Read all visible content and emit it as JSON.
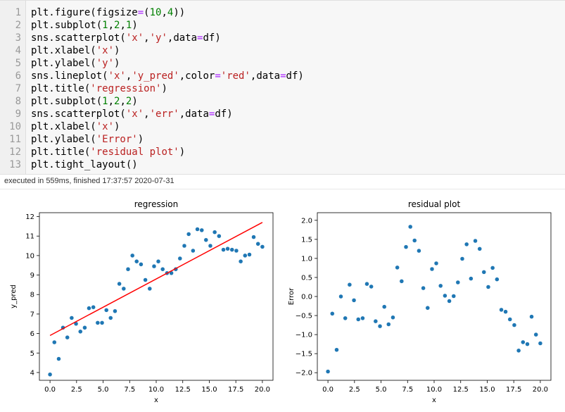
{
  "code_lines": [
    {
      "n": "1",
      "tokens": [
        {
          "t": "plt.figure(figsize",
          "c": ""
        },
        {
          "t": "=",
          "c": "k-op"
        },
        {
          "t": "(",
          "c": ""
        },
        {
          "t": "10",
          "c": "k-num"
        },
        {
          "t": ",",
          "c": ""
        },
        {
          "t": "4",
          "c": "k-num"
        },
        {
          "t": "))",
          "c": ""
        }
      ]
    },
    {
      "n": "2",
      "tokens": [
        {
          "t": "plt.subplot(",
          "c": ""
        },
        {
          "t": "1",
          "c": "k-num"
        },
        {
          "t": ",",
          "c": ""
        },
        {
          "t": "2",
          "c": "k-num"
        },
        {
          "t": ",",
          "c": ""
        },
        {
          "t": "1",
          "c": "k-num"
        },
        {
          "t": ")",
          "c": ""
        }
      ]
    },
    {
      "n": "3",
      "tokens": [
        {
          "t": "sns.scatterplot(",
          "c": ""
        },
        {
          "t": "'x'",
          "c": "k-str"
        },
        {
          "t": ",",
          "c": ""
        },
        {
          "t": "'y'",
          "c": "k-str"
        },
        {
          "t": ",data",
          "c": ""
        },
        {
          "t": "=",
          "c": "k-op"
        },
        {
          "t": "df)",
          "c": ""
        }
      ]
    },
    {
      "n": "4",
      "tokens": [
        {
          "t": "plt.xlabel(",
          "c": ""
        },
        {
          "t": "'x'",
          "c": "k-str"
        },
        {
          "t": ")",
          "c": ""
        }
      ]
    },
    {
      "n": "5",
      "tokens": [
        {
          "t": "plt.ylabel(",
          "c": ""
        },
        {
          "t": "'y'",
          "c": "k-str"
        },
        {
          "t": ")",
          "c": ""
        }
      ]
    },
    {
      "n": "6",
      "tokens": [
        {
          "t": "sns.lineplot(",
          "c": ""
        },
        {
          "t": "'x'",
          "c": "k-str"
        },
        {
          "t": ",",
          "c": ""
        },
        {
          "t": "'y_pred'",
          "c": "k-str"
        },
        {
          "t": ",color",
          "c": ""
        },
        {
          "t": "=",
          "c": "k-op"
        },
        {
          "t": "'red'",
          "c": "k-str"
        },
        {
          "t": ",data",
          "c": ""
        },
        {
          "t": "=",
          "c": "k-op"
        },
        {
          "t": "df)",
          "c": ""
        }
      ]
    },
    {
      "n": "7",
      "tokens": [
        {
          "t": "plt.title(",
          "c": ""
        },
        {
          "t": "'regression'",
          "c": "k-str"
        },
        {
          "t": ")",
          "c": ""
        }
      ]
    },
    {
      "n": "8",
      "tokens": [
        {
          "t": "plt.subplot(",
          "c": ""
        },
        {
          "t": "1",
          "c": "k-num"
        },
        {
          "t": ",",
          "c": ""
        },
        {
          "t": "2",
          "c": "k-num"
        },
        {
          "t": ",",
          "c": ""
        },
        {
          "t": "2",
          "c": "k-num"
        },
        {
          "t": ")",
          "c": ""
        }
      ]
    },
    {
      "n": "9",
      "tokens": [
        {
          "t": "sns.scatterplot(",
          "c": ""
        },
        {
          "t": "'x'",
          "c": "k-str"
        },
        {
          "t": ",",
          "c": ""
        },
        {
          "t": "'err'",
          "c": "k-str"
        },
        {
          "t": ",data",
          "c": ""
        },
        {
          "t": "=",
          "c": "k-op"
        },
        {
          "t": "df)",
          "c": ""
        }
      ]
    },
    {
      "n": "10",
      "tokens": [
        {
          "t": "plt.xlabel(",
          "c": ""
        },
        {
          "t": "'x'",
          "c": "k-str"
        },
        {
          "t": ")",
          "c": ""
        }
      ]
    },
    {
      "n": "11",
      "tokens": [
        {
          "t": "plt.ylabel(",
          "c": ""
        },
        {
          "t": "'Error'",
          "c": "k-str"
        },
        {
          "t": ")",
          "c": ""
        }
      ]
    },
    {
      "n": "12",
      "tokens": [
        {
          "t": "plt.title(",
          "c": ""
        },
        {
          "t": "'residual plot'",
          "c": "k-str"
        },
        {
          "t": ")",
          "c": ""
        }
      ]
    },
    {
      "n": "13",
      "tokens": [
        {
          "t": "plt.tight_layout()",
          "c": ""
        }
      ]
    }
  ],
  "execution_status": "executed in 559ms, finished 17:37:57 2020-07-31",
  "colors": {
    "point": "#1f77b4",
    "line": "#ff0000"
  },
  "chart_data": [
    {
      "type": "scatter",
      "title": "regression",
      "xlabel": "x",
      "ylabel": "y_pred",
      "xlim": [
        -1.0,
        21.0
      ],
      "ylim": [
        3.6,
        12.2
      ],
      "xticks": [
        "0.0",
        "2.5",
        "5.0",
        "7.5",
        "10.0",
        "12.5",
        "15.0",
        "17.5",
        "20.0"
      ],
      "yticks": [
        "4",
        "5",
        "6",
        "7",
        "8",
        "9",
        "10",
        "11",
        "12"
      ],
      "series": [
        {
          "points": [
            [
              0.0,
              3.9
            ],
            [
              0.41,
              5.55
            ],
            [
              0.82,
              4.7
            ],
            [
              1.22,
              6.3
            ],
            [
              1.63,
              5.8
            ],
            [
              2.04,
              6.8
            ],
            [
              2.45,
              6.5
            ],
            [
              2.86,
              6.1
            ],
            [
              3.27,
              6.3
            ],
            [
              3.67,
              7.3
            ],
            [
              4.08,
              7.35
            ],
            [
              4.49,
              6.55
            ],
            [
              4.9,
              6.55
            ],
            [
              5.31,
              7.2
            ],
            [
              5.71,
              6.8
            ],
            [
              6.12,
              7.15
            ],
            [
              6.53,
              8.55
            ],
            [
              6.94,
              8.3
            ],
            [
              7.35,
              9.3
            ],
            [
              7.76,
              10.0
            ],
            [
              8.16,
              9.7
            ],
            [
              8.57,
              9.55
            ],
            [
              8.98,
              8.75
            ],
            [
              9.39,
              8.3
            ],
            [
              9.8,
              9.45
            ],
            [
              10.2,
              9.7
            ],
            [
              10.61,
              9.3
            ],
            [
              11.02,
              9.1
            ],
            [
              11.43,
              9.1
            ],
            [
              11.84,
              9.3
            ],
            [
              12.24,
              9.85
            ],
            [
              12.65,
              10.5
            ],
            [
              13.06,
              11.1
            ],
            [
              13.47,
              10.25
            ],
            [
              13.88,
              11.35
            ],
            [
              14.29,
              11.3
            ],
            [
              14.69,
              10.8
            ],
            [
              15.1,
              10.5
            ],
            [
              15.51,
              11.2
            ],
            [
              15.92,
              11.0
            ],
            [
              16.33,
              10.3
            ],
            [
              16.73,
              10.35
            ],
            [
              17.14,
              10.3
            ],
            [
              17.55,
              10.25
            ],
            [
              17.96,
              9.7
            ],
            [
              18.37,
              10.0
            ],
            [
              18.78,
              10.05
            ],
            [
              19.18,
              10.95
            ],
            [
              19.59,
              10.6
            ],
            [
              20.0,
              10.45
            ]
          ]
        },
        {
          "type": "line",
          "color": "red",
          "points": [
            [
              0.0,
              5.9
            ],
            [
              20.0,
              11.7
            ]
          ]
        }
      ]
    },
    {
      "type": "scatter",
      "title": "residual plot",
      "xlabel": "x",
      "ylabel": "Error",
      "xlim": [
        -1.0,
        21.0
      ],
      "ylim": [
        -2.2,
        2.2
      ],
      "xticks": [
        "0.0",
        "2.5",
        "5.0",
        "7.5",
        "10.0",
        "12.5",
        "15.0",
        "17.5",
        "20.0"
      ],
      "yticks": [
        "2.0",
        "1.5",
        "1.0",
        "0.5",
        "0.0",
        "−0.5",
        "−1.0",
        "−1.5",
        "−2.0"
      ],
      "yticks_values": [
        2.0,
        1.5,
        1.0,
        0.5,
        0.0,
        -0.5,
        -1.0,
        -1.5,
        -2.0
      ],
      "series": [
        {
          "points": [
            [
              0.0,
              -1.97
            ],
            [
              0.41,
              -0.45
            ],
            [
              0.82,
              -1.4
            ],
            [
              1.22,
              0.0
            ],
            [
              1.63,
              -0.57
            ],
            [
              2.04,
              0.31
            ],
            [
              2.45,
              -0.1
            ],
            [
              2.86,
              -0.6
            ],
            [
              3.27,
              -0.57
            ],
            [
              3.67,
              0.33
            ],
            [
              4.08,
              0.26
            ],
            [
              4.49,
              -0.65
            ],
            [
              4.9,
              -0.78
            ],
            [
              5.31,
              -0.27
            ],
            [
              5.71,
              -0.73
            ],
            [
              6.12,
              -0.55
            ],
            [
              6.53,
              0.76
            ],
            [
              6.94,
              0.4
            ],
            [
              7.35,
              1.3
            ],
            [
              7.76,
              1.83
            ],
            [
              8.16,
              1.47
            ],
            [
              8.57,
              1.2
            ],
            [
              8.98,
              0.22
            ],
            [
              9.39,
              -0.3
            ],
            [
              9.8,
              0.72
            ],
            [
              10.2,
              0.87
            ],
            [
              10.61,
              0.28
            ],
            [
              11.02,
              0.02
            ],
            [
              11.43,
              -0.12
            ],
            [
              11.84,
              0.01
            ],
            [
              12.24,
              0.37
            ],
            [
              12.65,
              0.99
            ],
            [
              13.06,
              1.37
            ],
            [
              13.47,
              0.47
            ],
            [
              13.88,
              1.46
            ],
            [
              14.29,
              1.25
            ],
            [
              14.69,
              0.64
            ],
            [
              15.1,
              0.25
            ],
            [
              15.51,
              0.75
            ],
            [
              15.92,
              0.45
            ],
            [
              16.33,
              -0.35
            ],
            [
              16.73,
              -0.4
            ],
            [
              17.14,
              -0.6
            ],
            [
              17.55,
              -0.75
            ],
            [
              17.96,
              -1.42
            ],
            [
              18.37,
              -1.2
            ],
            [
              18.78,
              -1.25
            ],
            [
              19.18,
              -0.53
            ],
            [
              19.59,
              -1.0
            ],
            [
              20.0,
              -1.23
            ]
          ]
        }
      ]
    }
  ]
}
